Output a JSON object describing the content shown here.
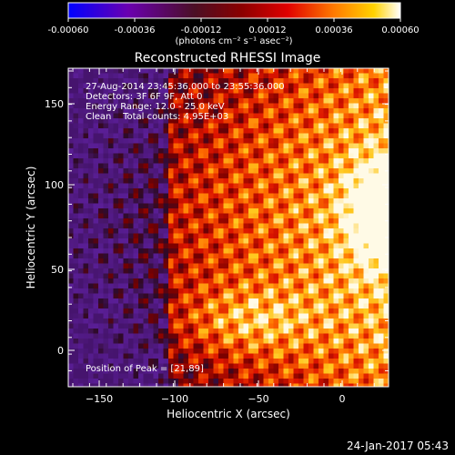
{
  "colorbar": {
    "ticks": [
      "-0.00060",
      "-0.00036",
      "-0.00012",
      "0.00012",
      "0.00036",
      "0.00060"
    ],
    "units": "(photons cm⁻² s⁻¹ asec⁻²)",
    "colors": [
      "#0000ff",
      "#6a00b0",
      "#4b0f25",
      "#8a0000",
      "#e00000",
      "#ff7a00",
      "#ffd200",
      "#ffffff"
    ]
  },
  "plot": {
    "title": "Reconstructed RHESSI Image",
    "xlabel": "Heliocentric X (arcsec)",
    "ylabel": "Heliocentric Y (arcsec)",
    "x_ticks": [
      "−150",
      "−100",
      "−50",
      "0"
    ],
    "y_ticks": [
      "150",
      "100",
      "50",
      "0"
    ],
    "xlim": [
      -165,
      27
    ],
    "ylim": [
      -20,
      172
    ],
    "peak_position": [
      21,
      89
    ]
  },
  "annotations": {
    "time_range": "27-Aug-2014 23:45:36.000 to 23:55:36.000",
    "detectors": "Detectors: 3F 6F 9F, Att 0",
    "energy": "Energy Range: 12.0 - 25.0 keV",
    "clean": "Clean    Total counts: 4.95E+03",
    "peak": "Position of Peak = [21,89]"
  },
  "footer": {
    "date": "24-Jan-2017 05:43"
  }
}
